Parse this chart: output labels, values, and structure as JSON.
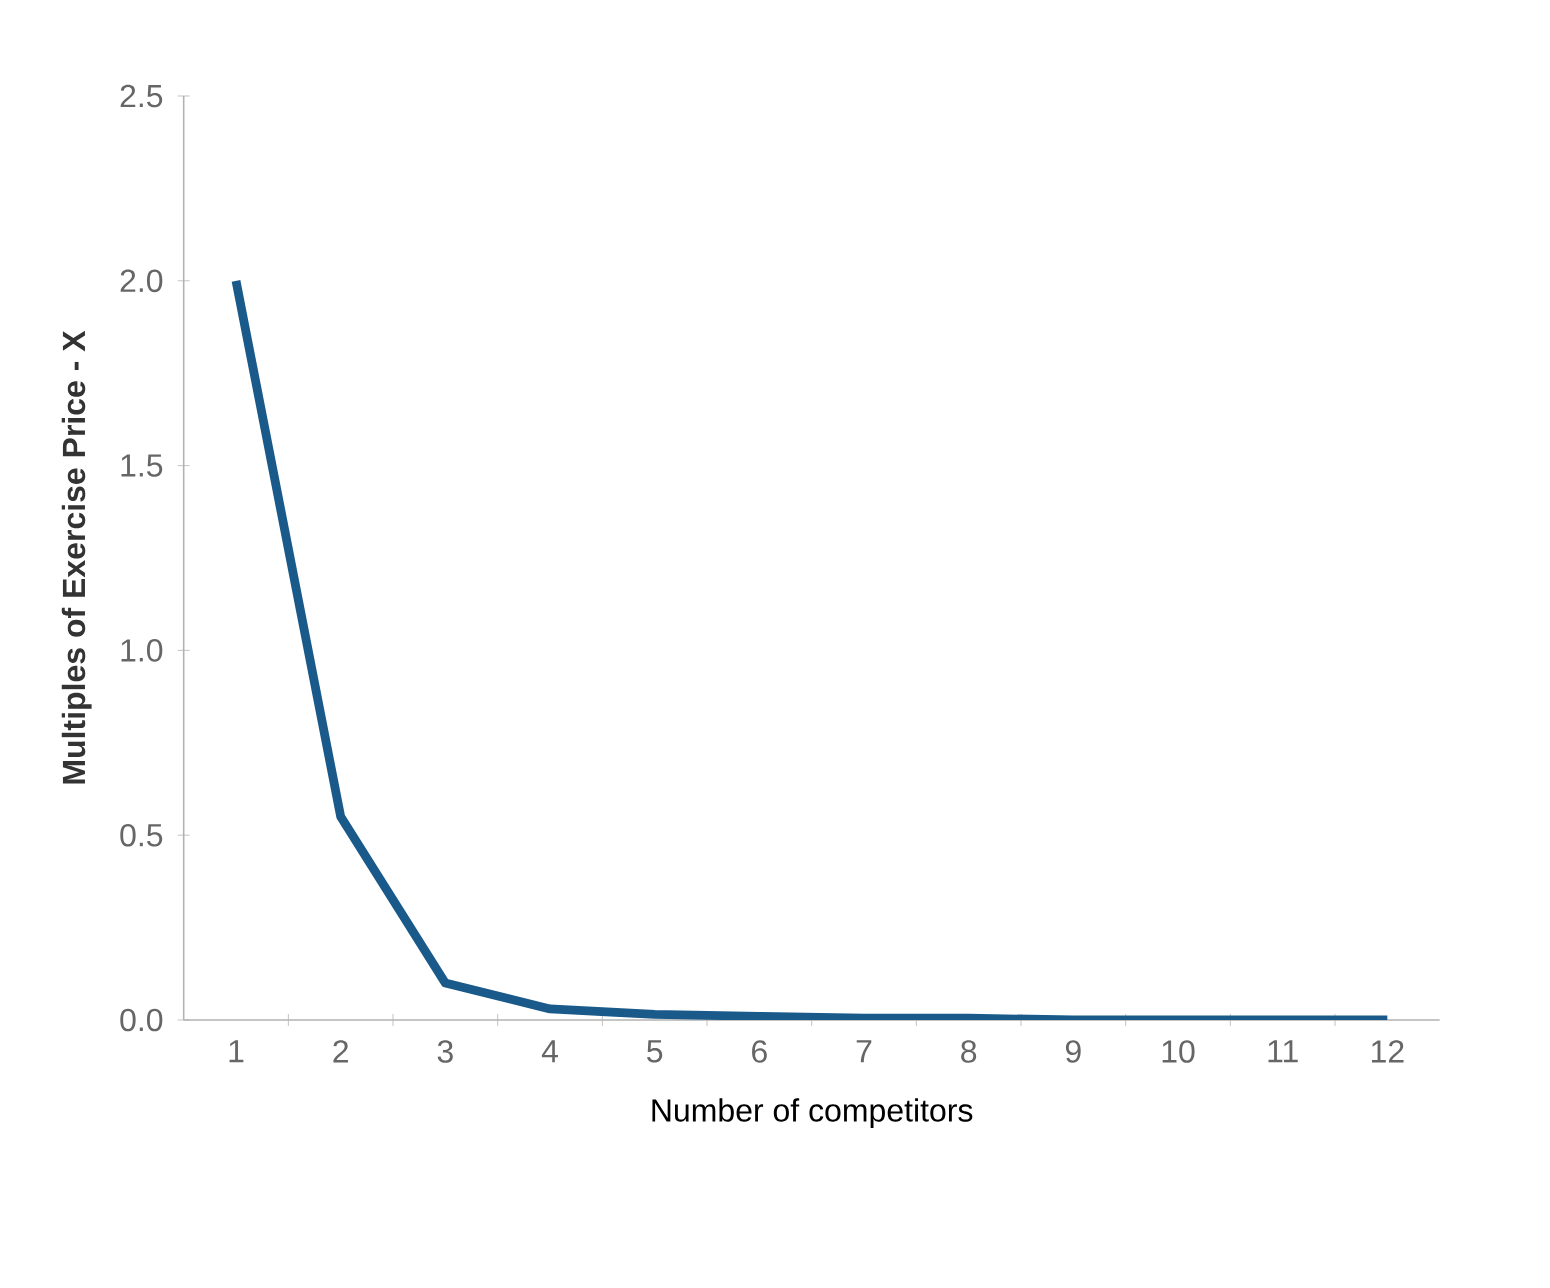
{
  "chart_data": {
    "type": "line",
    "xlabel": "Number of competitors",
    "ylabel": "Multiples of Exercise Price - X",
    "categories": [
      "1",
      "2",
      "3",
      "4",
      "5",
      "6",
      "7",
      "8",
      "9",
      "10",
      "11",
      "12"
    ],
    "series": [
      {
        "color": "#1a5a8a",
        "values": [
          2.0,
          0.55,
          0.1,
          0.03,
          0.015,
          0.01,
          0.005,
          0.005,
          0.0,
          0.0,
          0.0,
          0.0
        ]
      }
    ],
    "ylim": [
      0,
      2.5
    ],
    "yticks": [
      {
        "value": 0,
        "label": "0.0"
      },
      {
        "value": 0.5,
        "label": "0.5"
      },
      {
        "value": 1,
        "label": "1.0"
      },
      {
        "value": 1.5,
        "label": "1.5"
      },
      {
        "value": 2,
        "label": "2.0"
      },
      {
        "value": 2.5,
        "label": "2.5"
      }
    ],
    "grid": false,
    "marker": "none",
    "line_style": "solid"
  }
}
